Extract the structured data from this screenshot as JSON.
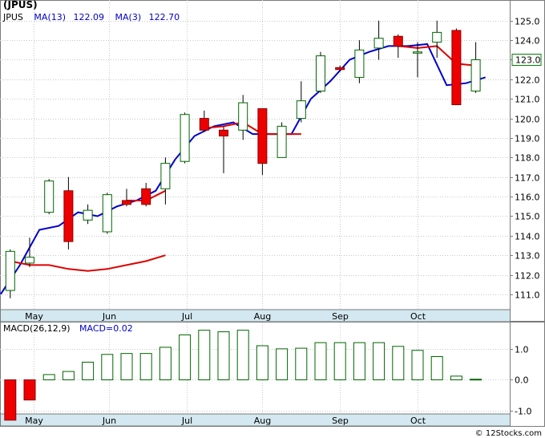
{
  "chart_data": [
    {
      "type": "candlestick",
      "title": "(JPUS)",
      "ticker": "JPUS",
      "indicators": [
        {
          "label": "MA(13)",
          "value": "122.09",
          "color": "#0000cc"
        },
        {
          "label": "MA(3)",
          "value": "122.70",
          "color": "#dd0000"
        }
      ],
      "last_price": "123.0",
      "ylim": [
        110.3,
        125.4
      ],
      "y_ticks": [
        111.0,
        112.0,
        113.0,
        114.0,
        115.0,
        116.0,
        117.0,
        118.0,
        119.0,
        120.0,
        121.0,
        122.0,
        123.0,
        124.0,
        125.0
      ],
      "x_ticks": [
        "May",
        "Jun",
        "Jul",
        "Aug",
        "Sep",
        "Oct"
      ],
      "x_tick_positions": [
        1.2,
        5.1,
        9.1,
        13.0,
        17.0,
        21.0
      ],
      "candles": [
        {
          "o": 111.2,
          "h": 113.3,
          "l": 110.8,
          "c": 113.2
        },
        {
          "o": 112.6,
          "h": 113.9,
          "l": 112.4,
          "c": 112.9
        },
        {
          "o": 115.2,
          "h": 116.9,
          "l": 115.1,
          "c": 116.8
        },
        {
          "o": 116.3,
          "h": 117.0,
          "l": 113.3,
          "c": 113.7
        },
        {
          "o": 114.8,
          "h": 115.6,
          "l": 114.6,
          "c": 115.3
        },
        {
          "o": 114.2,
          "h": 116.2,
          "l": 114.1,
          "c": 116.1
        },
        {
          "o": 115.8,
          "h": 116.4,
          "l": 115.5,
          "c": 115.6
        },
        {
          "o": 116.4,
          "h": 116.7,
          "l": 115.5,
          "c": 115.6
        },
        {
          "o": 116.4,
          "h": 118.0,
          "l": 115.6,
          "c": 117.7
        },
        {
          "o": 117.8,
          "h": 120.3,
          "l": 117.7,
          "c": 120.2
        },
        {
          "o": 120.0,
          "h": 120.4,
          "l": 119.3,
          "c": 119.4
        },
        {
          "o": 119.4,
          "h": 119.6,
          "l": 117.2,
          "c": 119.1
        },
        {
          "o": 119.4,
          "h": 121.2,
          "l": 118.9,
          "c": 120.8
        },
        {
          "o": 120.5,
          "h": 120.5,
          "l": 117.1,
          "c": 117.7
        },
        {
          "o": 118.0,
          "h": 119.8,
          "l": 118.0,
          "c": 119.6
        },
        {
          "o": 120.0,
          "h": 121.9,
          "l": 119.8,
          "c": 120.9
        },
        {
          "o": 121.4,
          "h": 123.4,
          "l": 121.3,
          "c": 123.2
        },
        {
          "o": 122.6,
          "h": 122.7,
          "l": 122.4,
          "c": 122.5
        },
        {
          "o": 122.1,
          "h": 124.0,
          "l": 121.8,
          "c": 123.5
        },
        {
          "o": 123.6,
          "h": 125.0,
          "l": 123.0,
          "c": 124.1
        },
        {
          "o": 124.2,
          "h": 124.3,
          "l": 123.1,
          "c": 123.7
        },
        {
          "o": 123.4,
          "h": 123.9,
          "l": 122.1,
          "c": 123.4
        },
        {
          "o": 123.9,
          "h": 125.0,
          "l": 123.1,
          "c": 124.4
        },
        {
          "o": 124.5,
          "h": 124.6,
          "l": 120.7,
          "c": 120.7
        },
        {
          "o": 121.4,
          "h": 123.9,
          "l": 121.3,
          "c": 123.0
        }
      ],
      "ma13": [
        111.0,
        112.5,
        114.3,
        114.5,
        115.2,
        115.0,
        115.5,
        115.8,
        116.3,
        117.9,
        119.1,
        119.6,
        119.8,
        119.2,
        119.2,
        119.2,
        121.0,
        121.9,
        123.0,
        123.4,
        123.7,
        123.7,
        123.8,
        121.7,
        121.8,
        122.1
      ],
      "ma3_lines": [
        {
          "y": [
            112.7,
            112.5,
            112.5,
            112.3,
            112.2,
            112.3,
            112.5,
            112.7,
            113.0
          ]
        },
        {
          "y": [
            115.8,
            115.8,
            116.3
          ]
        },
        {
          "y": [
            119.5,
            119.6,
            119.8,
            119.2,
            119.2,
            119.2
          ]
        },
        {
          "y": [
            123.7,
            123.6,
            123.7,
            122.8,
            122.7
          ]
        }
      ],
      "ma3_line_starts": [
        0,
        6,
        10,
        20
      ]
    },
    {
      "type": "bar",
      "title": "MACD(26,12,9)",
      "indicators": [
        {
          "label": "MACD(26,12,9)",
          "value": "",
          "color": "#000000"
        },
        {
          "label": "MACD=",
          "value": "0.02",
          "color": "#0000cc"
        }
      ],
      "ylim": [
        -1.1,
        1.85
      ],
      "y_ticks": [
        -1.0,
        0.0,
        1.0
      ],
      "values": [
        -1.3,
        -0.65,
        0.17,
        0.27,
        0.57,
        0.82,
        0.85,
        0.85,
        1.05,
        1.45,
        1.6,
        1.55,
        1.6,
        1.1,
        1.0,
        1.02,
        1.2,
        1.2,
        1.2,
        1.2,
        1.08,
        0.95,
        0.75,
        0.12,
        0.02
      ]
    }
  ],
  "watermark": "© 12Stocks.com"
}
